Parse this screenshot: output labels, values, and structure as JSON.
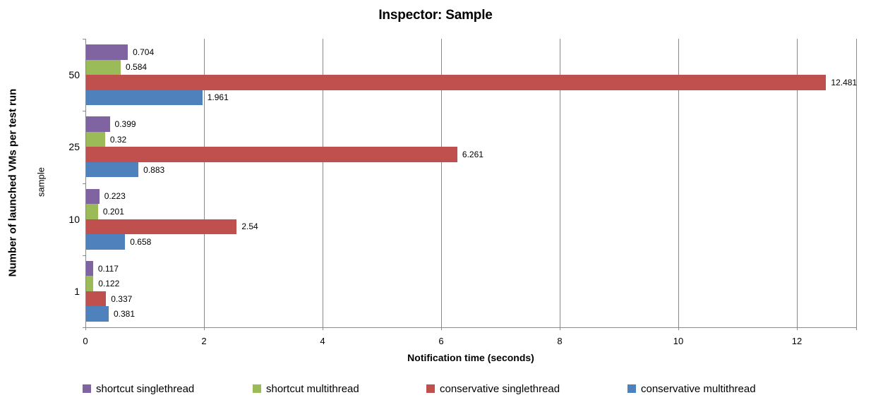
{
  "chart_data": {
    "type": "bar",
    "orientation": "horizontal",
    "title": "Inspector: Sample",
    "xlabel": "Notification time (seconds)",
    "ylabel": "Number of launched VMs per test run",
    "ylabel_secondary": "sample",
    "categories": [
      "50",
      "25",
      "10",
      "1"
    ],
    "series": [
      {
        "name": "shortcut singlethread",
        "color": "#8064A2",
        "values": [
          0.704,
          0.399,
          0.223,
          0.117
        ]
      },
      {
        "name": "shortcut multithread",
        "color": "#9BBB59",
        "values": [
          0.584,
          0.32,
          0.201,
          0.122
        ]
      },
      {
        "name": "conservative singlethread",
        "color": "#C0504D",
        "values": [
          12.481,
          6.261,
          2.54,
          0.337
        ]
      },
      {
        "name": "conservative multithread",
        "color": "#4F81BD",
        "values": [
          1.961,
          0.883,
          0.658,
          0.381
        ]
      }
    ],
    "x_ticks": [
      0,
      2,
      4,
      6,
      8,
      10,
      12
    ],
    "xlim": [
      0,
      13
    ],
    "grid": true,
    "value_labels": true,
    "legend_position": "bottom"
  },
  "colors": {
    "gridline": "#8A8A8A",
    "axis": "#8A8A8A",
    "text": "#000000",
    "background": "#FFFFFF"
  }
}
